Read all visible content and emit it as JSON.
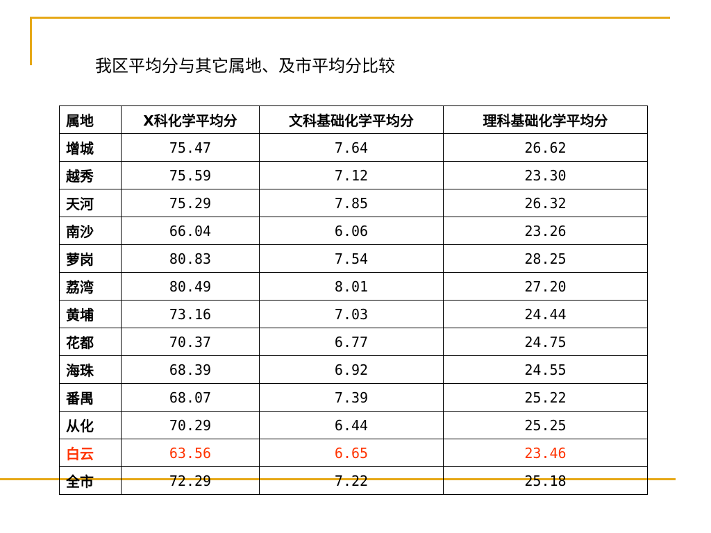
{
  "title": "我区平均分与其它属地、及市平均分比较",
  "colors": {
    "decoration": "#e6a817",
    "highlight": "#ff3300",
    "text": "#000000"
  },
  "table": {
    "headers": [
      "属地",
      "X科化学平均分",
      "文科基础化学平均分",
      "理科基础化学平均分"
    ],
    "highlight_row": 11,
    "rows": [
      {
        "name": "增城",
        "values": [
          "75.47",
          "7.64",
          "26.62"
        ]
      },
      {
        "name": "越秀",
        "values": [
          "75.59",
          "7.12",
          "23.30"
        ]
      },
      {
        "name": "天河",
        "values": [
          "75.29",
          "7.85",
          "26.32"
        ]
      },
      {
        "name": "南沙",
        "values": [
          "66.04",
          "6.06",
          "23.26"
        ]
      },
      {
        "name": "萝岗",
        "values": [
          "80.83",
          "7.54",
          "28.25"
        ]
      },
      {
        "name": "荔湾",
        "values": [
          "80.49",
          "8.01",
          "27.20"
        ]
      },
      {
        "name": "黄埔",
        "values": [
          "73.16",
          "7.03",
          "24.44"
        ]
      },
      {
        "name": "花都",
        "values": [
          "70.37",
          "6.77",
          "24.75"
        ]
      },
      {
        "name": "海珠",
        "values": [
          "68.39",
          "6.92",
          "24.55"
        ]
      },
      {
        "name": "番禺",
        "values": [
          "68.07",
          "7.39",
          "25.22"
        ]
      },
      {
        "name": "从化",
        "values": [
          "70.29",
          "6.44",
          "25.25"
        ]
      },
      {
        "name": "白云",
        "values": [
          "63.56",
          "6.65",
          "23.46"
        ]
      },
      {
        "name": "全市",
        "values": [
          "72.29",
          "7.22",
          "25.18"
        ]
      }
    ]
  }
}
